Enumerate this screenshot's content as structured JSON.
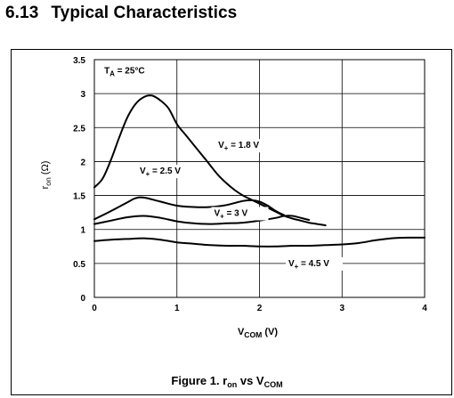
{
  "section": {
    "number": "6.13",
    "title": "Typical Characteristics"
  },
  "caption": {
    "prefix": "Figure 1. r",
    "sub1": "on",
    "mid": " vs V",
    "sub2": "COM"
  },
  "chart_data": {
    "type": "line",
    "xlabel": {
      "main": "V",
      "sub": "COM",
      "unit": " (V)"
    },
    "ylabel": {
      "main": "r",
      "sub": "on",
      "unit": " (Ω)"
    },
    "xlim": [
      0,
      4
    ],
    "ylim": [
      0,
      3.5
    ],
    "x_ticks": [
      "0",
      "1",
      "2",
      "3",
      "4"
    ],
    "y_ticks": [
      "0",
      "0.5",
      "1",
      "1.5",
      "2",
      "2.5",
      "3",
      "3.5"
    ],
    "x_tick_values": [
      0,
      1,
      2,
      3,
      4
    ],
    "y_tick_values": [
      0,
      0.5,
      1,
      1.5,
      2,
      2.5,
      3,
      3.5
    ],
    "grid": true,
    "annotation": {
      "main": "T",
      "sub": "A",
      "rest": " = 25°C"
    },
    "series": [
      {
        "name_main": "V",
        "name_sub": "+",
        "name_rest": " = 1.8 V",
        "x": [
          0,
          0.1,
          0.2,
          0.3,
          0.4,
          0.5,
          0.6,
          0.7,
          0.8,
          0.9,
          1.0,
          1.1,
          1.2,
          1.3,
          1.4,
          1.5,
          1.6,
          1.7,
          1.8,
          1.9,
          2.0,
          2.1,
          2.2,
          2.3,
          2.4,
          2.5,
          2.6,
          2.7,
          2.8
        ],
        "values": [
          1.62,
          1.75,
          2.02,
          2.35,
          2.65,
          2.85,
          2.95,
          2.97,
          2.9,
          2.78,
          2.55,
          2.4,
          2.25,
          2.1,
          1.95,
          1.8,
          1.68,
          1.58,
          1.5,
          1.44,
          1.38,
          1.32,
          1.26,
          1.2,
          1.16,
          1.13,
          1.1,
          1.08,
          1.06
        ]
      },
      {
        "name_main": "V",
        "name_sub": "+",
        "name_rest": " = 2.5 V",
        "x": [
          0,
          0.2,
          0.4,
          0.5,
          0.6,
          0.8,
          1.0,
          1.2,
          1.4,
          1.6,
          1.8,
          1.9,
          2.0,
          2.1,
          2.2,
          2.3
        ],
        "values": [
          1.15,
          1.27,
          1.4,
          1.46,
          1.47,
          1.41,
          1.35,
          1.33,
          1.33,
          1.36,
          1.42,
          1.43,
          1.41,
          1.35,
          1.27,
          1.21
        ]
      },
      {
        "name_main": "V",
        "name_sub": "+",
        "name_rest": " = 3 V",
        "x": [
          0,
          0.2,
          0.4,
          0.6,
          0.8,
          1.0,
          1.2,
          1.4,
          1.6,
          1.8,
          2.0,
          2.2,
          2.3,
          2.4,
          2.5,
          2.6
        ],
        "values": [
          1.08,
          1.13,
          1.18,
          1.2,
          1.17,
          1.12,
          1.09,
          1.08,
          1.09,
          1.1,
          1.13,
          1.17,
          1.2,
          1.2,
          1.17,
          1.14
        ]
      },
      {
        "name_main": "V",
        "name_sub": "+",
        "name_rest": " = 4.5 V",
        "x": [
          0,
          0.2,
          0.4,
          0.6,
          0.8,
          1.0,
          1.2,
          1.4,
          1.6,
          1.8,
          2.0,
          2.2,
          2.4,
          2.6,
          2.8,
          3.0,
          3.2,
          3.4,
          3.6,
          3.8,
          4.0
        ],
        "values": [
          0.83,
          0.85,
          0.86,
          0.87,
          0.85,
          0.81,
          0.79,
          0.77,
          0.76,
          0.76,
          0.75,
          0.75,
          0.76,
          0.76,
          0.77,
          0.78,
          0.8,
          0.84,
          0.87,
          0.88,
          0.88
        ]
      }
    ],
    "label_positions_data": [
      {
        "series": 0,
        "x": 1.5,
        "y": 2.2
      },
      {
        "series": 1,
        "x": 0.55,
        "y": 1.82
      },
      {
        "series": 2,
        "x": 1.45,
        "y": 1.2
      },
      {
        "series": 3,
        "x": 2.35,
        "y": 0.46
      }
    ],
    "annotation_pos": {
      "x": 0.12,
      "y": 3.3
    }
  }
}
